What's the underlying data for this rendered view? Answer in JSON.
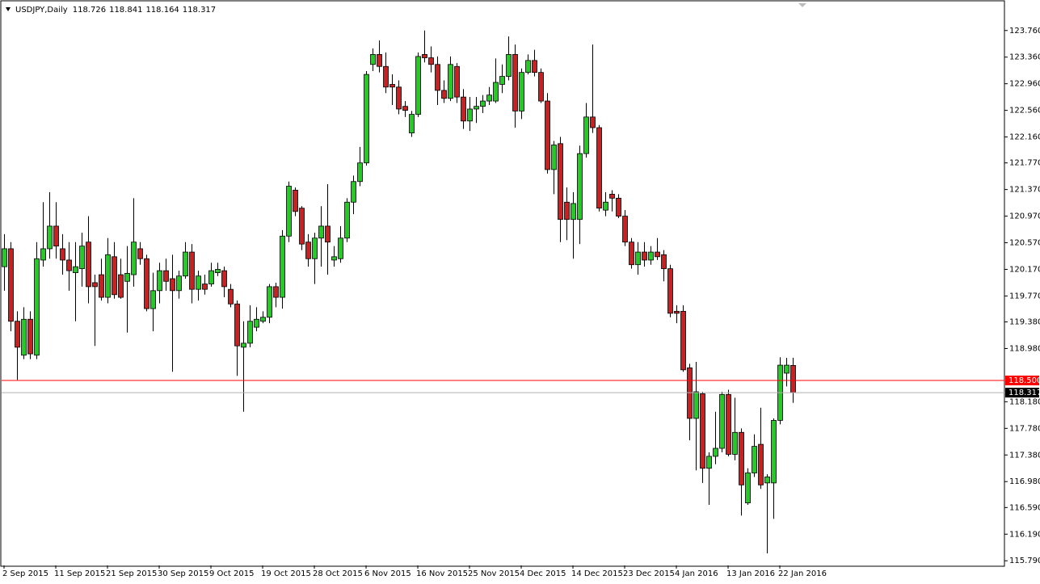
{
  "chart_data": {
    "type": "candlestick",
    "title": "USDJPY,Daily",
    "categories": [
      "2 Sep 2015",
      null,
      null,
      null,
      null,
      null,
      null,
      null,
      "11 Sep 2015",
      null,
      null,
      null,
      null,
      null,
      null,
      null,
      "21 Sep 2015",
      null,
      null,
      null,
      null,
      null,
      null,
      null,
      "30 Sep 2015",
      null,
      null,
      null,
      null,
      null,
      null,
      null,
      "9 Oct 2015",
      null,
      null,
      null,
      null,
      null,
      null,
      null,
      "19 Oct 2015",
      null,
      null,
      null,
      null,
      null,
      null,
      null,
      "28 Oct 2015",
      null,
      null,
      null,
      null,
      null,
      null,
      null,
      "6 Nov 2015",
      null,
      null,
      null,
      null,
      null,
      null,
      null,
      "16 Nov 2015",
      null,
      null,
      null,
      null,
      null,
      null,
      null,
      "25 Nov 2015",
      null,
      null,
      null,
      null,
      null,
      null,
      null,
      "4 Dec 2015",
      null,
      null,
      null,
      null,
      null,
      null,
      null,
      "14 Dec 2015",
      null,
      null,
      null,
      null,
      null,
      null,
      null,
      "23 Dec 2015",
      null,
      null,
      null,
      null,
      null,
      null,
      null,
      "4 Jan 2016",
      null,
      null,
      null,
      null,
      null,
      null,
      null,
      "13 Jan 2016",
      null,
      null,
      null,
      null,
      null,
      null,
      null,
      "22 Jan 2016",
      null,
      null
    ],
    "open": [
      120.21,
      120.48,
      119.39,
      118.88,
      119.42,
      118.88,
      120.31,
      120.48,
      120.82,
      120.48,
      120.31,
      120.12,
      120.18,
      120.58,
      119.97,
      120.09,
      119.75,
      120.36,
      120.09,
      119.99,
      120.09,
      120.48,
      120.33,
      119.58,
      119.85,
      120.15,
      120.03,
      119.85,
      120.07,
      120.43,
      119.87,
      119.95,
      119.95,
      120.12,
      120.15,
      119.87,
      119.65,
      119.0,
      119.06,
      119.3,
      119.39,
      119.45,
      119.91,
      119.75,
      120.67,
      121.36,
      121.09,
      120.58,
      120.33,
      120.64,
      120.82,
      120.31,
      120.33,
      120.64,
      121.18,
      121.49,
      121.77,
      123.25,
      123.4,
      123.22,
      122.95,
      122.91,
      122.62,
      122.22,
      122.5,
      123.4,
      123.35,
      123.25,
      122.86,
      122.74,
      123.22,
      122.76,
      122.4,
      122.58,
      122.62,
      122.7,
      122.7,
      122.95,
      123.07,
      123.4,
      122.55,
      123.13,
      123.31,
      123.13,
      122.7,
      121.67,
      122.06,
      121.18,
      120.92,
      120.92,
      121.91,
      122.46,
      122.3,
      121.06,
      121.3,
      121.24,
      120.97,
      120.58,
      120.24,
      120.43,
      120.31,
      120.43,
      120.39,
      120.18,
      119.54,
      119.54,
      118.69,
      117.93,
      118.3,
      117.18,
      117.36,
      117.48,
      118.29,
      117.39,
      117.72,
      116.66,
      117.11,
      117.54,
      116.96,
      116.96,
      117.9,
      118.61,
      118.726
    ],
    "high": [
      120.7,
      120.58,
      119.54,
      119.6,
      119.54,
      120.58,
      121.18,
      121.33,
      121.18,
      120.7,
      120.58,
      120.58,
      120.72,
      120.97,
      120.09,
      120.33,
      120.64,
      120.58,
      120.33,
      120.52,
      121.24,
      120.58,
      120.39,
      120.12,
      120.27,
      120.33,
      120.39,
      120.15,
      120.58,
      120.55,
      120.15,
      120.09,
      120.27,
      120.27,
      120.21,
      119.95,
      119.7,
      119.39,
      119.63,
      119.6,
      119.54,
      119.95,
      119.97,
      120.76,
      121.49,
      121.4,
      121.12,
      120.7,
      120.72,
      121.12,
      121.45,
      120.52,
      120.82,
      121.24,
      121.58,
      122.01,
      123.15,
      123.49,
      123.61,
      123.43,
      123.1,
      123.01,
      122.7,
      122.55,
      123.43,
      123.76,
      123.52,
      123.37,
      123.01,
      123.37,
      123.27,
      122.88,
      122.76,
      122.76,
      122.79,
      122.91,
      123.34,
      123.25,
      123.67,
      123.55,
      123.19,
      123.4,
      123.47,
      123.19,
      122.82,
      122.1,
      122.16,
      121.4,
      121.33,
      122.03,
      122.67,
      123.55,
      122.34,
      121.33,
      121.36,
      121.3,
      121.06,
      120.64,
      120.58,
      120.58,
      120.52,
      120.64,
      120.46,
      120.24,
      119.63,
      119.63,
      118.75,
      118.78,
      118.33,
      117.42,
      118.03,
      118.33,
      118.36,
      118.24,
      117.78,
      117.18,
      117.69,
      118.09,
      117.09,
      117.93,
      118.85,
      118.84,
      118.841
    ],
    "low": [
      119.85,
      119.24,
      118.51,
      118.82,
      118.82,
      118.82,
      120.21,
      120.33,
      120.33,
      120.09,
      119.85,
      119.39,
      119.91,
      119.66,
      119.02,
      119.7,
      119.66,
      119.73,
      119.73,
      119.22,
      119.91,
      120.24,
      119.54,
      119.24,
      119.66,
      119.85,
      118.63,
      119.73,
      120.03,
      119.66,
      119.7,
      119.79,
      119.91,
      120.07,
      119.75,
      119.6,
      118.57,
      118.03,
      119.0,
      119.24,
      119.36,
      119.36,
      119.6,
      119.58,
      120.58,
      120.97,
      120.46,
      120.21,
      119.95,
      120.21,
      120.09,
      120.21,
      120.27,
      120.58,
      121.0,
      121.42,
      121.73,
      123.15,
      123.13,
      122.82,
      122.64,
      122.5,
      122.46,
      122.16,
      122.46,
      123.28,
      123.13,
      122.64,
      122.67,
      122.7,
      122.67,
      122.28,
      122.25,
      122.37,
      122.52,
      122.64,
      122.67,
      122.82,
      123.01,
      122.3,
      122.43,
      123.1,
      123.07,
      122.67,
      121.61,
      121.3,
      120.58,
      120.61,
      120.33,
      120.55,
      121.85,
      122.22,
      121.04,
      120.97,
      121.04,
      120.94,
      120.52,
      120.18,
      120.09,
      120.21,
      120.24,
      120.31,
      119.99,
      119.45,
      119.36,
      118.63,
      117.6,
      117.15,
      116.96,
      116.63,
      117.24,
      117.42,
      117.36,
      117.3,
      116.47,
      116.63,
      117.05,
      116.87,
      115.9,
      116.42,
      117.84,
      118.41,
      118.164
    ],
    "close": [
      120.48,
      119.39,
      119.0,
      119.42,
      118.9,
      120.33,
      120.48,
      120.82,
      120.52,
      120.31,
      120.15,
      120.21,
      120.52,
      119.91,
      119.91,
      119.75,
      120.39,
      119.79,
      119.75,
      120.11,
      120.58,
      120.33,
      119.58,
      119.85,
      120.15,
      119.99,
      119.85,
      120.07,
      120.43,
      119.87,
      120.07,
      119.87,
      120.15,
      120.17,
      119.91,
      119.65,
      119.02,
      119.06,
      119.39,
      119.42,
      119.45,
      119.91,
      119.75,
      120.67,
      121.42,
      121.04,
      120.55,
      120.33,
      120.64,
      120.82,
      120.58,
      120.36,
      120.64,
      121.18,
      121.49,
      121.77,
      123.1,
      123.4,
      123.22,
      122.91,
      122.91,
      122.58,
      122.56,
      122.5,
      123.37,
      123.35,
      123.25,
      122.86,
      122.74,
      123.25,
      122.76,
      122.4,
      122.58,
      122.62,
      122.7,
      122.79,
      122.98,
      123.07,
      123.4,
      122.55,
      123.13,
      123.31,
      123.13,
      122.7,
      121.67,
      122.04,
      120.92,
      120.92,
      121.16,
      121.91,
      122.46,
      122.3,
      121.09,
      121.18,
      121.24,
      120.97,
      120.58,
      120.24,
      120.43,
      120.31,
      120.43,
      120.36,
      120.18,
      119.51,
      119.51,
      118.66,
      117.93,
      118.33,
      117.18,
      117.36,
      117.48,
      118.29,
      117.39,
      117.72,
      116.93,
      117.11,
      117.51,
      116.93,
      117.05,
      117.9,
      118.73,
      118.73,
      118.317
    ],
    "up_color": "#22cc22",
    "down_color": "#cc1f1f",
    "ylim": [
      115.72,
      124.17
    ],
    "yticks": [
      {
        "value": 123.76,
        "label": "123.760"
      },
      {
        "value": 123.36,
        "label": "123.360"
      },
      {
        "value": 122.96,
        "label": "122.960"
      },
      {
        "value": 122.56,
        "label": "122.560"
      },
      {
        "value": 122.16,
        "label": "122.160"
      },
      {
        "value": 121.77,
        "label": "121.770"
      },
      {
        "value": 121.37,
        "label": "121.370"
      },
      {
        "value": 120.97,
        "label": "120.970"
      },
      {
        "value": 120.57,
        "label": "120.570"
      },
      {
        "value": 120.17,
        "label": "120.170"
      },
      {
        "value": 119.77,
        "label": "119.770"
      },
      {
        "value": 119.38,
        "label": "119.380"
      },
      {
        "value": 118.98,
        "label": "118.980"
      },
      {
        "value": 118.18,
        "label": "118.180"
      },
      {
        "value": 117.78,
        "label": "117.780"
      },
      {
        "value": 117.38,
        "label": "117.380"
      },
      {
        "value": 116.98,
        "label": "116.980"
      },
      {
        "value": 116.59,
        "label": "116.590"
      },
      {
        "value": 116.19,
        "label": "116.190"
      },
      {
        "value": 115.79,
        "label": "115.790"
      }
    ],
    "hline": {
      "value": 118.5,
      "label": "118.500",
      "color": "#ff0000"
    }
  }
}
